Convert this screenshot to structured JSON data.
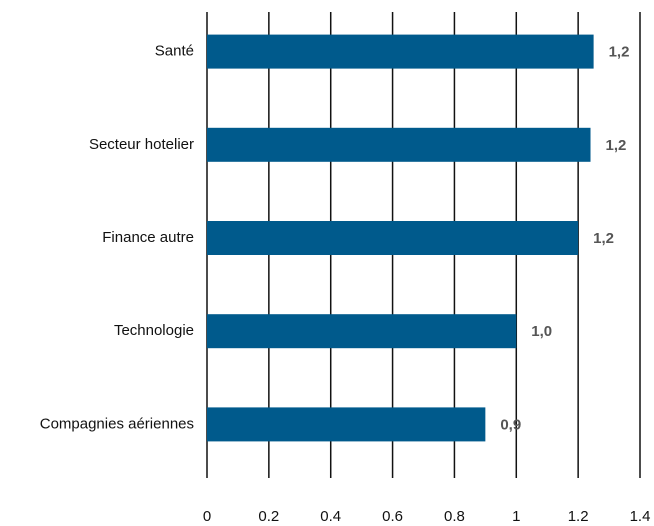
{
  "chart_data": {
    "type": "hbar",
    "categories": [
      "Santé",
      "Secteur hotelier",
      "Finance autre",
      "Technologie",
      "Compagnies aériennes"
    ],
    "values": [
      1.25,
      1.24,
      1.2,
      1.0,
      0.9
    ],
    "value_labels": [
      "1,2",
      "1,2",
      "1,2",
      "1,0",
      "0,9"
    ],
    "color": "#005a8c",
    "xlim": [
      0,
      1.4
    ],
    "xticks": [
      0,
      0.2,
      0.4,
      0.6,
      0.8,
      1,
      1.2,
      1.4
    ],
    "grid": true
  }
}
